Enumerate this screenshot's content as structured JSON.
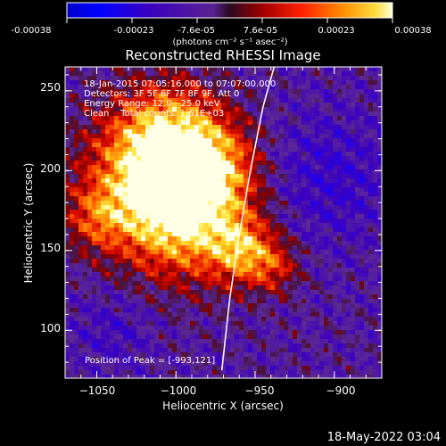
{
  "colorbar": {
    "ticks": [
      "-0.00038",
      "-0.00023",
      "-7.6e-05",
      "7.6e-05",
      "0.00023",
      "0.00038"
    ],
    "units_label": "(photons cm⁻² s⁻¹ asec⁻²)"
  },
  "chart_data": {
    "type": "heatmap",
    "title": "Reconstructed RHESSI Image",
    "xlabel": "Heliocentric X (arcsec)",
    "ylabel": "Heliocentric Y (arcsec)",
    "xlim": [
      -1070,
      -870
    ],
    "ylim": [
      70,
      265
    ],
    "x_ticks": [
      -1050,
      -1000,
      -950,
      -900
    ],
    "y_ticks": [
      100,
      150,
      200,
      250
    ],
    "x_tick_labels": [
      "−1050",
      "−1000",
      "−950",
      "−900"
    ],
    "y_tick_labels": [
      "100",
      "150",
      "200",
      "250"
    ],
    "value_range": [
      -0.00038,
      0.00038
    ],
    "peak_position": [
      -993,
      121
    ],
    "limb_curve": [
      [
        -971,
        75
      ],
      [
        -966,
        120
      ],
      [
        -960,
        160
      ],
      [
        -953,
        200
      ],
      [
        -945,
        240
      ],
      [
        -938,
        265
      ]
    ],
    "info_lines": [
      "18-Jan-2015 07:05:16.000 to 07:07:00.000",
      "Detectors: 3F 5F 6F 7F 8F 9F, Att 0",
      "Energy Range: 12.0 - 25.0 keV",
      "Clean    Total counts: 1.61E+03"
    ],
    "peak_label": "Position of Peak = [-993,121]"
  },
  "footer": {
    "timestamp": "18-May-2022 03:04"
  },
  "colors": {
    "background": "#000000",
    "foreground": "#ffffff"
  }
}
